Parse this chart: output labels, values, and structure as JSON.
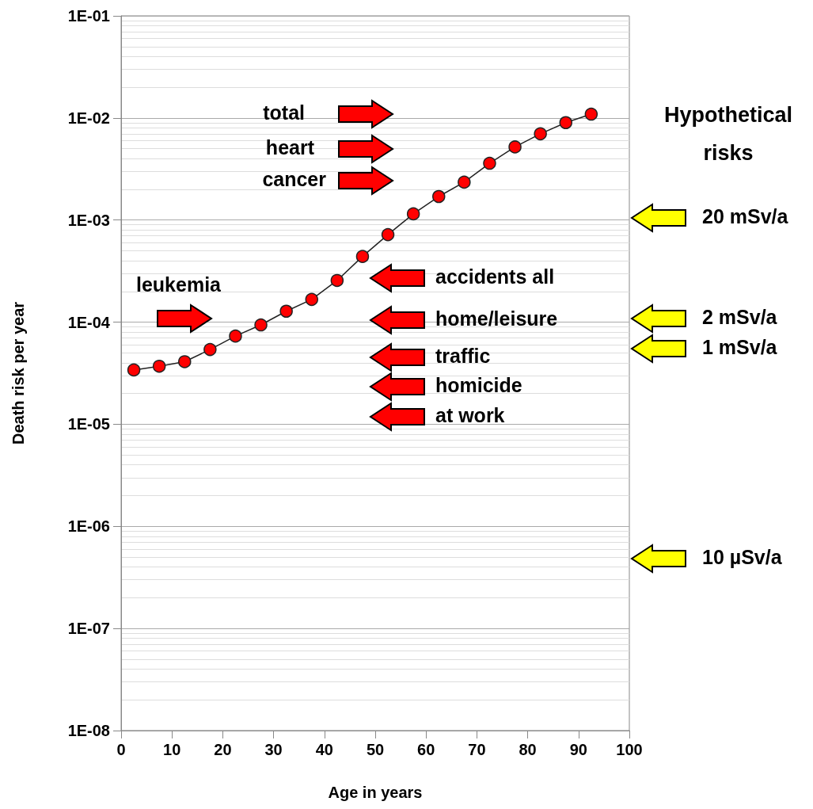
{
  "chart_data": {
    "type": "line",
    "xlabel": "Age in years",
    "ylabel": "Death risk per year",
    "x": [
      2.5,
      7.5,
      12.5,
      17.5,
      22.5,
      27.5,
      32.5,
      37.5,
      42.5,
      47.5,
      52.5,
      57.5,
      62.5,
      67.5,
      72.5,
      77.5,
      82.5,
      87.5,
      92.5
    ],
    "series": [
      {
        "color": "#ff0000",
        "values": [
          3.4e-05,
          3.7e-05,
          4.1e-05,
          5.4e-05,
          7.3e-05,
          9.4e-05,
          0.000128,
          0.000167,
          0.000256,
          0.00044,
          0.00072,
          0.00115,
          0.0017,
          0.00235,
          0.0036,
          0.0052,
          0.007,
          0.009,
          0.0109
        ]
      }
    ],
    "xlim": [
      0,
      100
    ],
    "xticks": [
      0,
      10,
      20,
      30,
      40,
      50,
      60,
      70,
      80,
      90,
      100
    ],
    "ylim": [
      1e-08,
      0.1
    ],
    "log": "y",
    "yticks": [
      {
        "value": 1e-08,
        "label": "1E-08"
      },
      {
        "value": 1e-07,
        "label": "1E-07"
      },
      {
        "value": 1e-06,
        "label": "1E-06"
      },
      {
        "value": 1e-05,
        "label": "1E-05"
      },
      {
        "value": 0.0001,
        "label": "1E-04"
      },
      {
        "value": 0.001,
        "label": "1E-03"
      },
      {
        "value": 0.01,
        "label": "1E-02"
      },
      {
        "value": 0.1,
        "label": "1E-01"
      }
    ],
    "grid": "y",
    "marker": "circle",
    "line_style": "solid",
    "annotations": [
      "Hypothetical risks",
      "total",
      "heart",
      "cancer",
      "leukemia",
      "accidents all",
      "home/leisure",
      "traffic",
      "homicide",
      "at work",
      "20 mSv/a",
      "2 mSv/a",
      "1 mSv/a",
      "10 µSv/a"
    ]
  }
}
